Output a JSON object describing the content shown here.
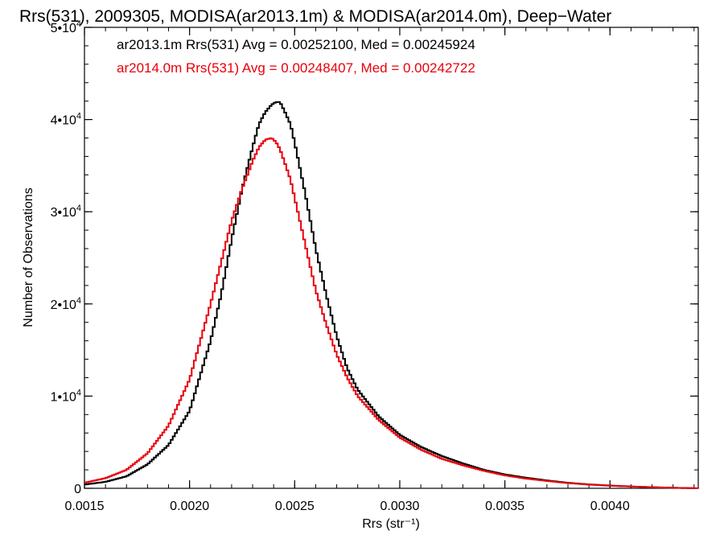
{
  "chart_data": {
    "type": "line",
    "title": "Rrs(531), 2009305, MODISA(ar2013.1m) & MODISA(ar2014.0m), Deep−Water",
    "xlabel": "Rrs (str⁻¹)",
    "ylabel": "Number of Observations",
    "xlim": [
      0.0015,
      0.00442
    ],
    "ylim": [
      0,
      50000
    ],
    "grid": false,
    "x_ticks": [
      {
        "value": 0.0015,
        "label": "0.0015"
      },
      {
        "value": 0.002,
        "label": "0.0020"
      },
      {
        "value": 0.0025,
        "label": "0.0025"
      },
      {
        "value": 0.003,
        "label": "0.0030"
      },
      {
        "value": 0.0035,
        "label": "0.0035"
      },
      {
        "value": 0.004,
        "label": "0.0040"
      }
    ],
    "y_ticks": [
      {
        "value": 0,
        "mantissa": "0",
        "exponent": ""
      },
      {
        "value": 10000,
        "mantissa": "1•10",
        "exponent": "4"
      },
      {
        "value": 20000,
        "mantissa": "2•10",
        "exponent": "4"
      },
      {
        "value": 30000,
        "mantissa": "3•10",
        "exponent": "4"
      },
      {
        "value": 40000,
        "mantissa": "4•10",
        "exponent": "4"
      },
      {
        "value": 50000,
        "mantissa": "5•10",
        "exponent": "4"
      }
    ],
    "annotations": [
      {
        "text": "ar2013.1m Rrs(531) Avg = 0.00252100, Med = 0.00245924",
        "color": "#000000"
      },
      {
        "text": "ar2014.0m Rrs(531) Avg = 0.00248407, Med = 0.00242722",
        "color": "#e8000b"
      }
    ],
    "series": [
      {
        "color": "#000000",
        "x": [
          0.0015,
          0.0016,
          0.0017,
          0.0018,
          0.0019,
          0.002,
          0.0021,
          0.00215,
          0.0022,
          0.00225,
          0.0023,
          0.00233,
          0.00236,
          0.00239,
          0.00241,
          0.00243,
          0.00245,
          0.00248,
          0.0025,
          0.00255,
          0.0026,
          0.00265,
          0.0027,
          0.00275,
          0.0028,
          0.0029,
          0.003,
          0.0031,
          0.0032,
          0.0033,
          0.0034,
          0.0035,
          0.0036,
          0.0037,
          0.0038,
          0.0039,
          0.004,
          0.0041,
          0.0042,
          0.0043,
          0.00442
        ],
        "y": [
          400,
          700,
          1300,
          2600,
          4700,
          8400,
          16000,
          21000,
          27000,
          32500,
          37000,
          39500,
          40800,
          41600,
          41900,
          41900,
          41000,
          39500,
          37500,
          32000,
          26000,
          21000,
          16500,
          13000,
          10700,
          7800,
          5800,
          4500,
          3500,
          2700,
          2000,
          1500,
          1150,
          850,
          600,
          420,
          300,
          200,
          120,
          60,
          0
        ]
      },
      {
        "color": "#e8000b",
        "x": [
          0.0015,
          0.0016,
          0.0017,
          0.0018,
          0.0019,
          0.002,
          0.0021,
          0.00215,
          0.0022,
          0.00225,
          0.0023,
          0.00233,
          0.00236,
          0.00239,
          0.00241,
          0.00243,
          0.00245,
          0.00248,
          0.0025,
          0.00255,
          0.0026,
          0.00265,
          0.0027,
          0.00275,
          0.0028,
          0.0029,
          0.003,
          0.0031,
          0.0032,
          0.0033,
          0.0034,
          0.0035,
          0.0036,
          0.0037,
          0.0038,
          0.0039,
          0.004,
          0.0041,
          0.0042,
          0.0043,
          0.00442
        ],
        "y": [
          600,
          1100,
          2000,
          3800,
          6800,
          11800,
          20000,
          24500,
          29000,
          32500,
          35500,
          37000,
          37800,
          38000,
          37600,
          36800,
          35500,
          33500,
          31500,
          26500,
          21500,
          17800,
          14500,
          12000,
          10000,
          7400,
          5500,
          4200,
          3200,
          2500,
          1900,
          1400,
          1050,
          800,
          560,
          400,
          280,
          190,
          110,
          60,
          0
        ]
      }
    ]
  }
}
